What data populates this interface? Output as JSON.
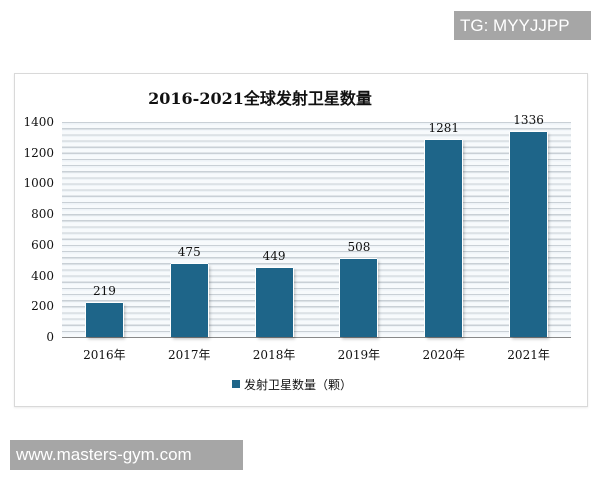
{
  "watermarks": {
    "top": "TG: MYYJJPP",
    "bottom": "www.masters-gym.com"
  },
  "chart_data": {
    "type": "bar",
    "title": "2016-2021全球发射卫星数量",
    "categories": [
      "2016年",
      "2017年",
      "2018年",
      "2019年",
      "2020年",
      "2021年"
    ],
    "series": [
      {
        "name": "发射卫星数量（颗）",
        "values": [
          219,
          475,
          449,
          508,
          1281,
          1336
        ],
        "color": "#1e6589"
      }
    ],
    "values": [
      219,
      475,
      449,
      508,
      1281,
      1336
    ],
    "data_labels": [
      "219",
      "475",
      "449",
      "508",
      "1281",
      "1336"
    ],
    "xlabel": "",
    "ylabel": "",
    "ylim": [
      0,
      1400
    ],
    "y_ticks": [
      "0",
      "200",
      "400",
      "600",
      "800",
      "1000",
      "1200",
      "1400"
    ],
    "grid": true,
    "legend_position": "bottom",
    "legend": [
      "发射卫星数量（颗）"
    ]
  }
}
